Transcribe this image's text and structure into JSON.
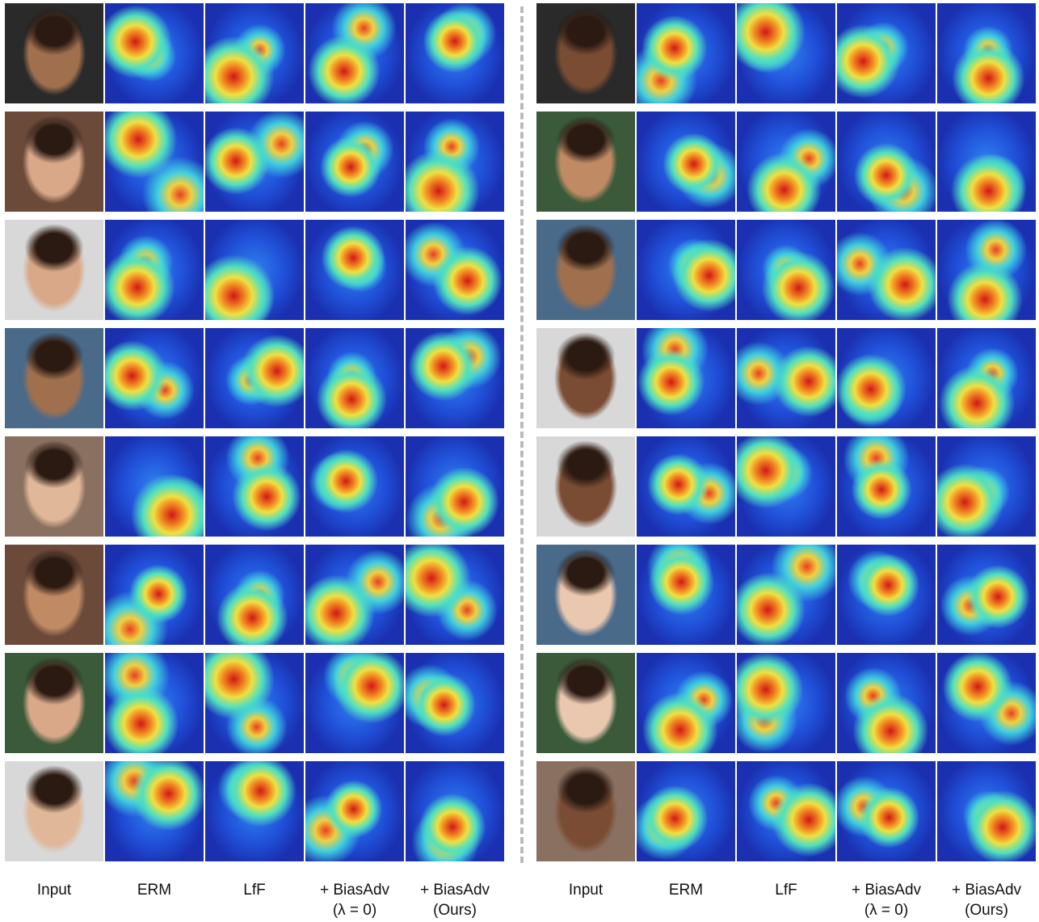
{
  "columns": [
    {
      "label": "Input"
    },
    {
      "label": "ERM"
    },
    {
      "label": "LfF"
    },
    {
      "label": "+ BiasAdv",
      "sublabel": "(λ = 0)"
    },
    {
      "label": "+ BiasAdv",
      "sublabel": "(Ours)"
    }
  ]
}
